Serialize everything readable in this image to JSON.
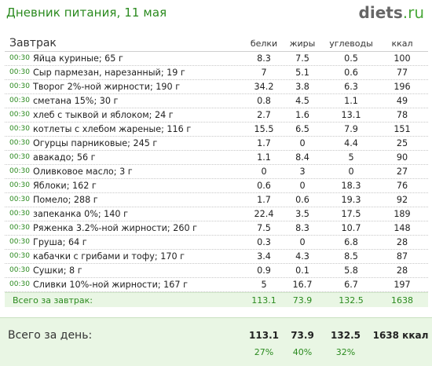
{
  "header": {
    "title": "Дневник питания, 11 мая",
    "logo_name": "diets",
    "logo_tld": ".ru"
  },
  "meal": {
    "name": "Завтрак",
    "columns": [
      "белки",
      "жиры",
      "углеводы",
      "ккал"
    ],
    "rows": [
      {
        "time": "00:30",
        "name": "Яйца куриные; 65 г",
        "p": "8.3",
        "f": "7.5",
        "c": "0.5",
        "k": "100"
      },
      {
        "time": "00:30",
        "name": "Сыр пармезан, нарезанный; 19 г",
        "p": "7",
        "f": "5.1",
        "c": "0.6",
        "k": "77"
      },
      {
        "time": "00:30",
        "name": "Творог 2%-ной жирности; 190 г",
        "p": "34.2",
        "f": "3.8",
        "c": "6.3",
        "k": "196"
      },
      {
        "time": "00:30",
        "name": "сметана 15%; 30 г",
        "p": "0.8",
        "f": "4.5",
        "c": "1.1",
        "k": "49"
      },
      {
        "time": "00:30",
        "name": "хлеб с тыквой и яблоком; 24 г",
        "p": "2.7",
        "f": "1.6",
        "c": "13.1",
        "k": "78"
      },
      {
        "time": "00:30",
        "name": "котлеты с хлебом жареные; 116 г",
        "p": "15.5",
        "f": "6.5",
        "c": "7.9",
        "k": "151"
      },
      {
        "time": "00:30",
        "name": "Огурцы парниковые; 245 г",
        "p": "1.7",
        "f": "0",
        "c": "4.4",
        "k": "25"
      },
      {
        "time": "00:30",
        "name": "авакадо; 56 г",
        "p": "1.1",
        "f": "8.4",
        "c": "5",
        "k": "90"
      },
      {
        "time": "00:30",
        "name": "Оливковое масло; 3 г",
        "p": "0",
        "f": "3",
        "c": "0",
        "k": "27"
      },
      {
        "time": "00:30",
        "name": "Яблоки; 162 г",
        "p": "0.6",
        "f": "0",
        "c": "18.3",
        "k": "76"
      },
      {
        "time": "00:30",
        "name": "Помело; 288 г",
        "p": "1.7",
        "f": "0.6",
        "c": "19.3",
        "k": "92"
      },
      {
        "time": "00:30",
        "name": "запеканка 0%; 140 г",
        "p": "22.4",
        "f": "3.5",
        "c": "17.5",
        "k": "189"
      },
      {
        "time": "00:30",
        "name": "Ряженка 3.2%-ной жирности; 260 г",
        "p": "7.5",
        "f": "8.3",
        "c": "10.7",
        "k": "148"
      },
      {
        "time": "00:30",
        "name": "Груша; 64 г",
        "p": "0.3",
        "f": "0",
        "c": "6.8",
        "k": "28"
      },
      {
        "time": "00:30",
        "name": "кабачки с грибами и тофу; 170 г",
        "p": "3.4",
        "f": "4.3",
        "c": "8.5",
        "k": "87"
      },
      {
        "time": "00:30",
        "name": "Сушки; 8 г",
        "p": "0.9",
        "f": "0.1",
        "c": "5.8",
        "k": "28"
      },
      {
        "time": "00:30",
        "name": "Сливки 10%-ной жирности; 167 г",
        "p": "5",
        "f": "16.7",
        "c": "6.7",
        "k": "197"
      }
    ],
    "total": {
      "label": "Всего за завтрак:",
      "p": "113.1",
      "f": "73.9",
      "c": "132.5",
      "k": "1638"
    }
  },
  "day_total": {
    "label": "Всего за день:",
    "p": "113.1",
    "f": "73.9",
    "c": "132.5",
    "k": "1638 ккал",
    "pp": "27%",
    "fp": "40%",
    "cp": "32%"
  }
}
